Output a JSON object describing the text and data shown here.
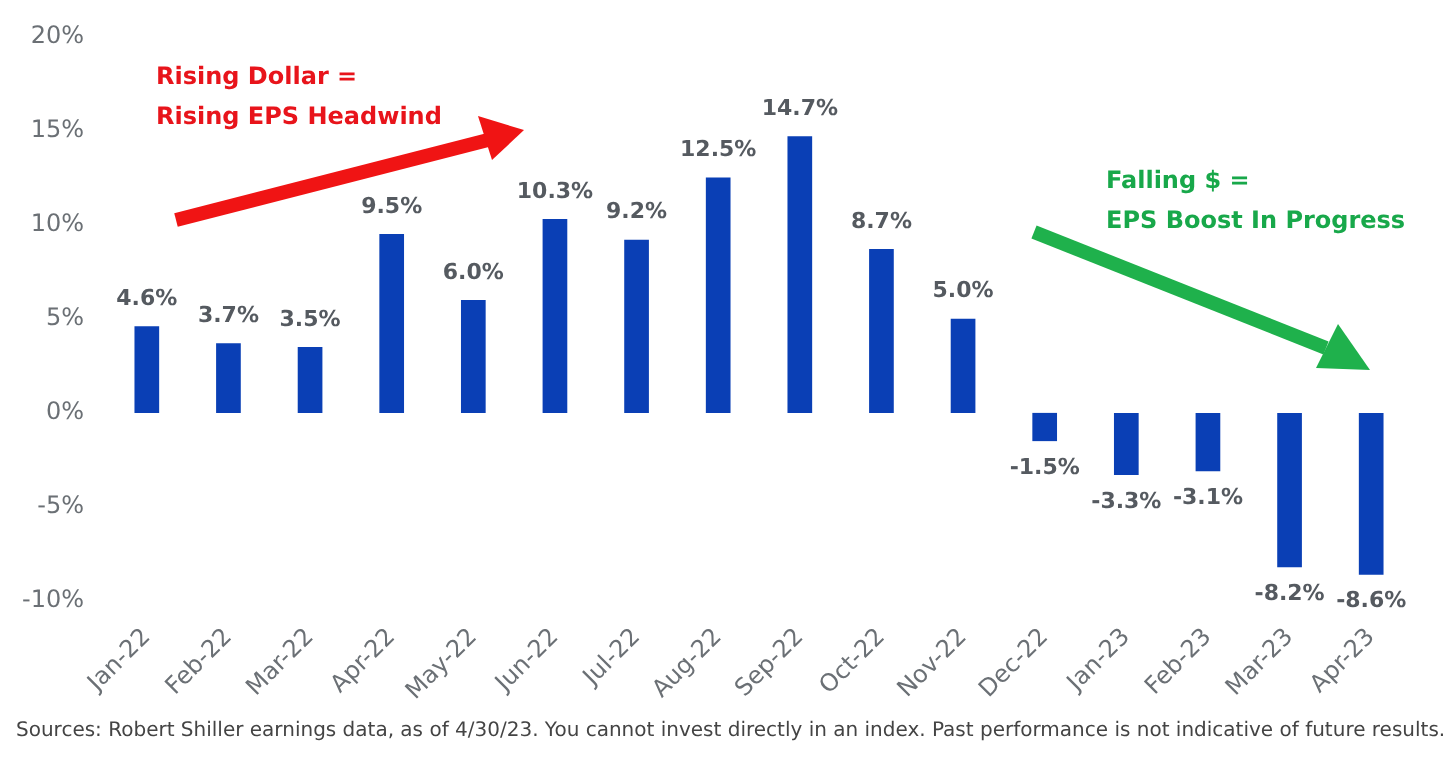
{
  "chart_data": {
    "type": "bar",
    "categories": [
      "Jan-22",
      "Feb-22",
      "Mar-22",
      "Apr-22",
      "May-22",
      "Jun-22",
      "Jul-22",
      "Aug-22",
      "Sep-22",
      "Oct-22",
      "Nov-22",
      "Dec-22",
      "Jan-23",
      "Feb-23",
      "Mar-23",
      "Apr-23"
    ],
    "values": [
      4.6,
      3.7,
      3.5,
      9.5,
      6.0,
      10.3,
      9.2,
      12.5,
      14.7,
      8.7,
      5.0,
      -1.5,
      -3.3,
      -3.1,
      -8.2,
      -8.6
    ],
    "value_labels": [
      "4.6%",
      "3.7%",
      "3.5%",
      "9.5%",
      "6.0%",
      "10.3%",
      "9.2%",
      "12.5%",
      "14.7%",
      "8.7%",
      "5.0%",
      "-1.5%",
      "-3.3%",
      "-3.1%",
      "-8.2%",
      "-8.6%"
    ],
    "color": "#0a3fb5",
    "ylim": [
      -10,
      20
    ],
    "yticks": [
      {
        "value": -10,
        "label": "-10%"
      },
      {
        "value": -5,
        "label": "-5%"
      },
      {
        "value": 0,
        "label": "0%"
      },
      {
        "value": 5,
        "label": "5%"
      },
      {
        "value": 10,
        "label": "10%"
      },
      {
        "value": 15,
        "label": "15%"
      },
      {
        "value": 20,
        "label": "20%"
      }
    ],
    "annotations": [
      "Rising Dollar =\nRising EPS Headwind",
      "Falling $ =\nEPS Boost In Progress",
      "Sources: Robert Shiller earnings data, as of 4/30/23. You cannot invest directly in an index. Past performance is not indicative of future results."
    ]
  }
}
